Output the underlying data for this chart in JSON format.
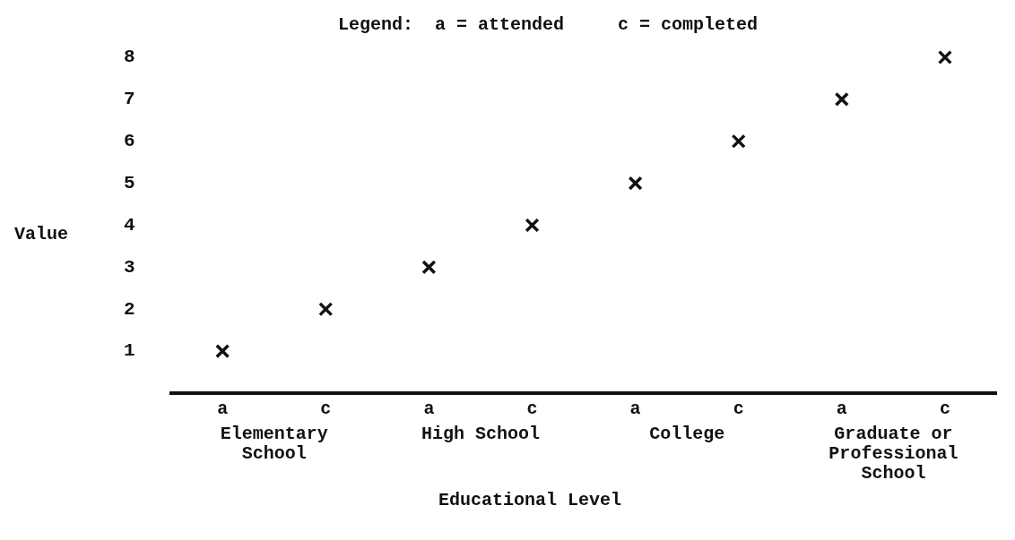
{
  "chart_data": {
    "type": "scatter",
    "title": "Legend:  a = attended     c = completed",
    "xlabel": "Educational Level",
    "ylabel": "Value",
    "categories": [
      "a",
      "c",
      "a",
      "c",
      "a",
      "c",
      "a",
      "c"
    ],
    "series": [
      {
        "color": "#111111",
        "values": [
          1,
          2,
          3,
          4,
          5,
          6,
          7,
          8
        ]
      }
    ],
    "ylim": [
      0,
      8
    ],
    "yticks": [
      1,
      2,
      3,
      4,
      5,
      6,
      7,
      8
    ],
    "grid": false,
    "legend": false,
    "marker": "cross",
    "annotations": [
      "Elementary School",
      "High School",
      "College",
      "Graduate or Professional School"
    ]
  }
}
